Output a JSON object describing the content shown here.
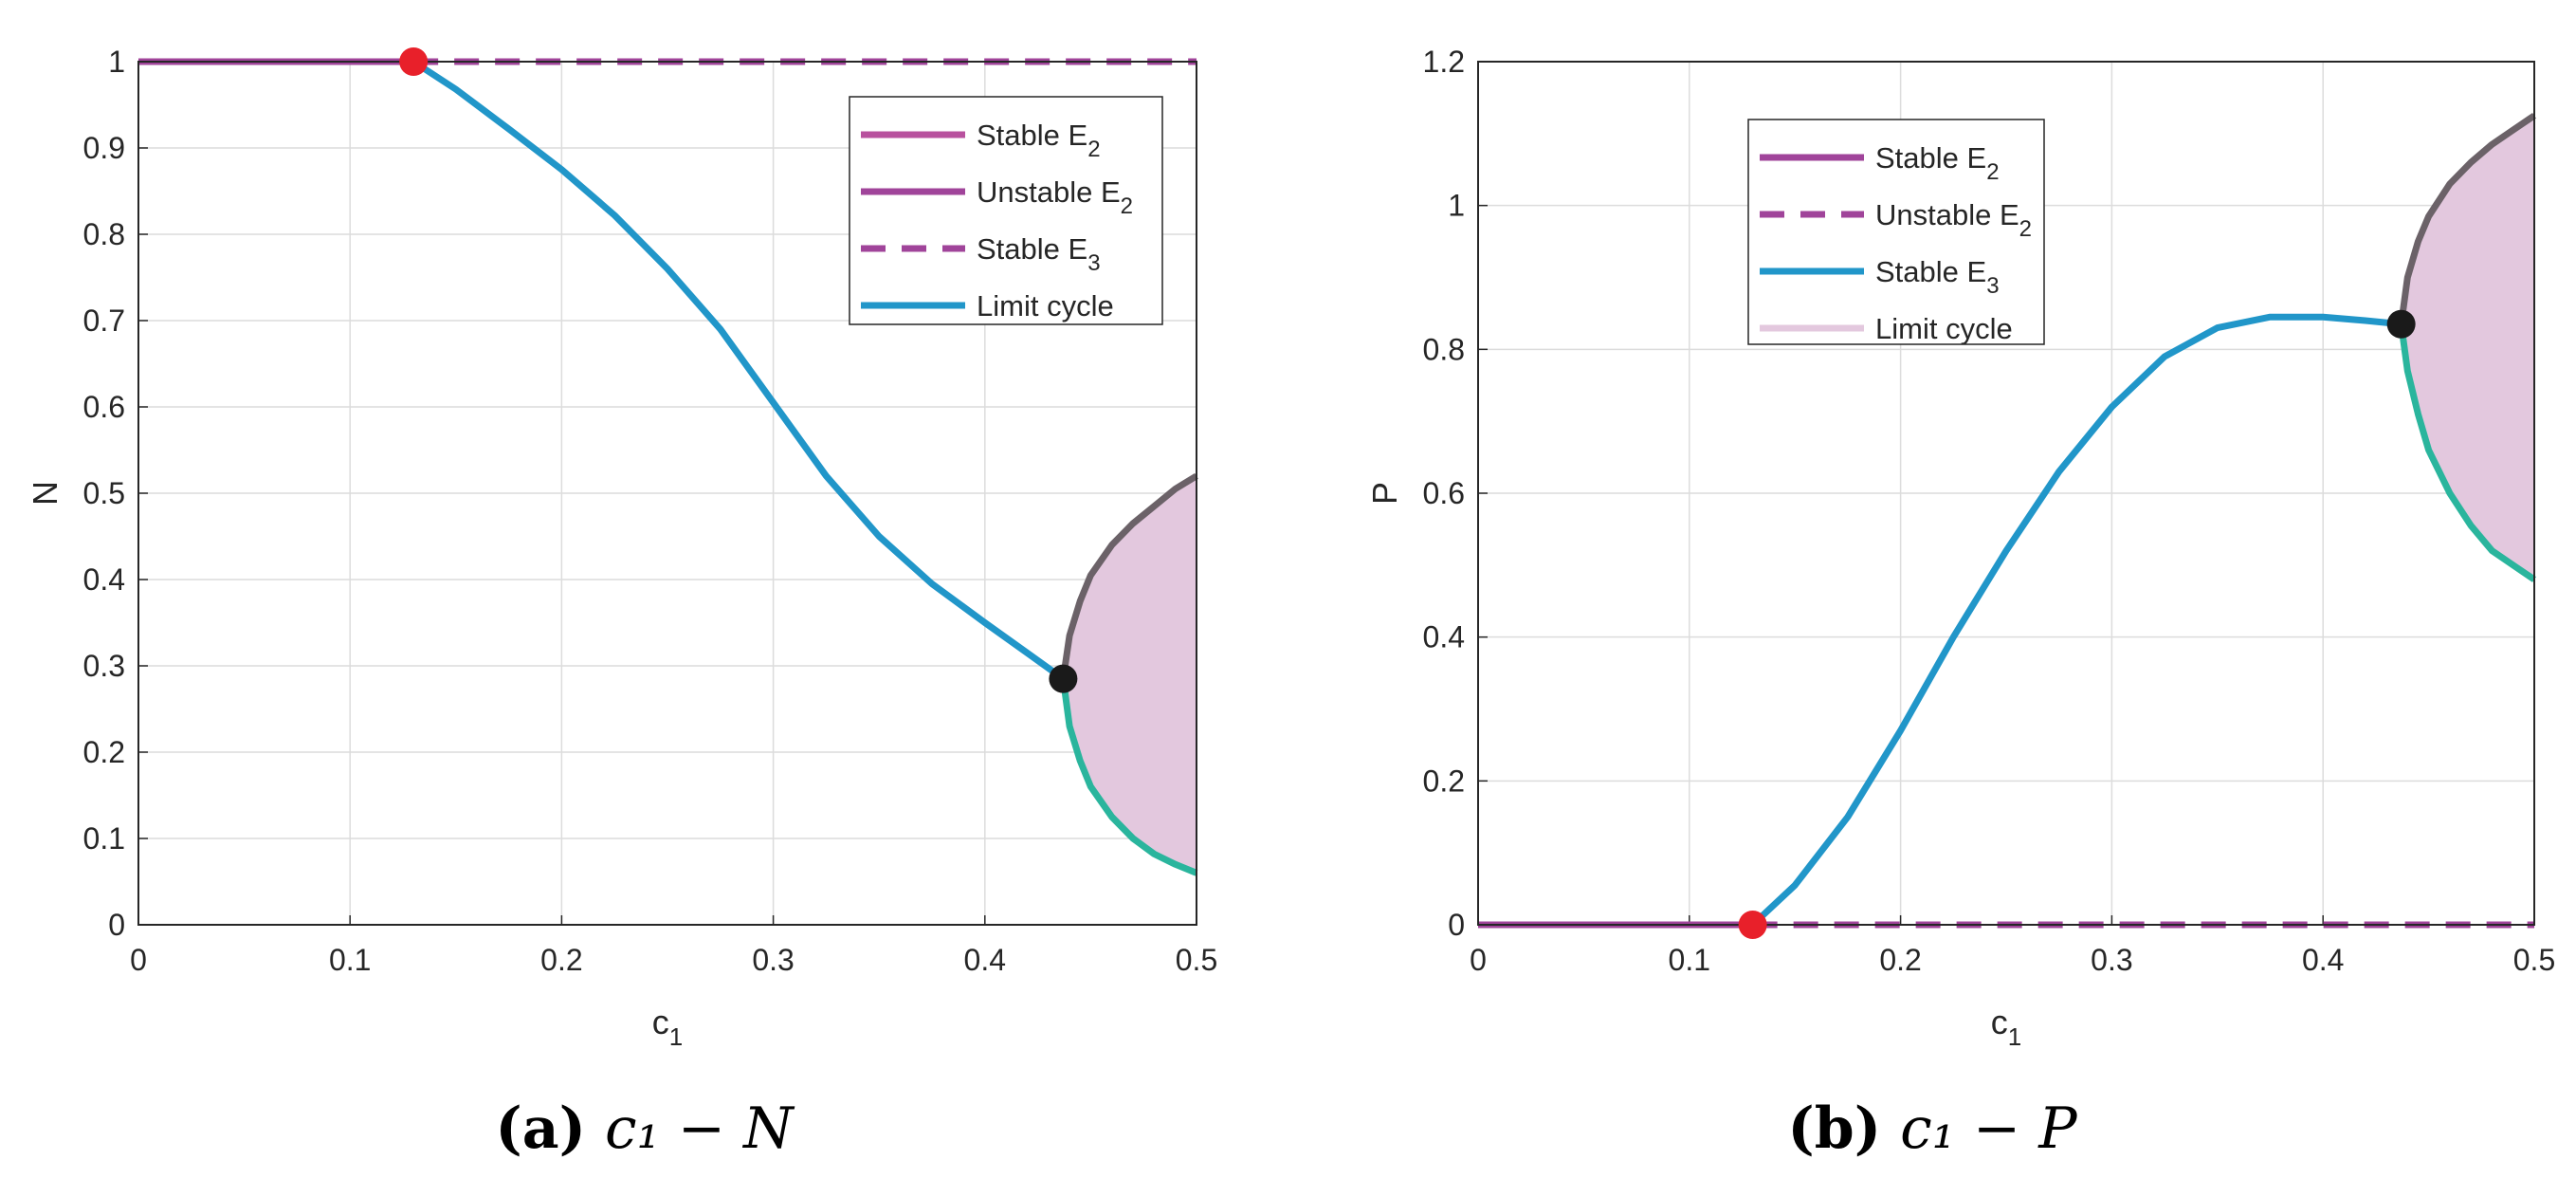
{
  "chart_data": [
    {
      "type": "line",
      "panel": "a",
      "caption_label": "(a)",
      "caption_math": "c₁ − N",
      "xlabel": "c",
      "xlabel_sub": "1",
      "ylabel": "N",
      "xlim": [
        0,
        0.5
      ],
      "ylim": [
        0,
        1
      ],
      "xticks": [
        "0",
        "0.1",
        "0.2",
        "0.3",
        "0.4",
        "0.5"
      ],
      "yticks": [
        "0",
        "0.1",
        "0.2",
        "0.3",
        "0.4",
        "0.5",
        "0.6",
        "0.7",
        "0.8",
        "0.9",
        "1"
      ],
      "grid": true,
      "legend_position": "top-right",
      "legend": [
        {
          "main": "Stable E",
          "sub": "2",
          "style": "solid",
          "color": "#b8519e"
        },
        {
          "main": "Unstable E",
          "sub": "2",
          "style": "solid",
          "color": "#a0449a"
        },
        {
          "main": "Stable E",
          "sub": "3",
          "style": "dashed",
          "color": "#a0449a"
        },
        {
          "main": "Limit cycle",
          "sub": "",
          "style": "solid",
          "color": "#2196c9"
        }
      ],
      "series": [
        {
          "name": "Stable E2",
          "style": "solid",
          "color": "#a0449a",
          "x": [
            0,
            0.13
          ],
          "y": [
            1,
            1
          ]
        },
        {
          "name": "Unstable E2",
          "style": "dashed",
          "color": "#a0449a",
          "x": [
            0.13,
            0.5
          ],
          "y": [
            1,
            1
          ]
        },
        {
          "name": "Stable E3",
          "style": "solid",
          "color": "#2196c9",
          "x": [
            0.13,
            0.15,
            0.175,
            0.2,
            0.225,
            0.25,
            0.275,
            0.3,
            0.325,
            0.35,
            0.375,
            0.4,
            0.42,
            0.437
          ],
          "y": [
            1.0,
            0.968,
            0.922,
            0.875,
            0.822,
            0.76,
            0.69,
            0.605,
            0.52,
            0.45,
            0.395,
            0.35,
            0.315,
            0.285
          ]
        },
        {
          "name": "Limit cycle max",
          "style": "solid",
          "color": "#6b6268",
          "x": [
            0.437,
            0.44,
            0.445,
            0.45,
            0.46,
            0.47,
            0.48,
            0.49,
            0.5
          ],
          "y": [
            0.285,
            0.335,
            0.375,
            0.405,
            0.44,
            0.465,
            0.485,
            0.505,
            0.52
          ]
        },
        {
          "name": "Limit cycle min",
          "style": "solid",
          "color": "#2ab59d",
          "x": [
            0.437,
            0.44,
            0.445,
            0.45,
            0.46,
            0.47,
            0.48,
            0.49,
            0.5
          ],
          "y": [
            0.285,
            0.23,
            0.19,
            0.16,
            0.125,
            0.1,
            0.082,
            0.07,
            0.06
          ]
        }
      ],
      "band": {
        "color": "#e3c8de",
        "upper": "Limit cycle max",
        "lower": "Limit cycle min"
      },
      "markers": [
        {
          "name": "branch-point",
          "x": 0.13,
          "y": 1.0,
          "color": "#e8202a"
        },
        {
          "name": "hopf-point",
          "x": 0.437,
          "y": 0.285,
          "color": "#1a1a1a"
        }
      ]
    },
    {
      "type": "line",
      "panel": "b",
      "caption_label": "(b)",
      "caption_math": "c₁ − P",
      "xlabel": "c",
      "xlabel_sub": "1",
      "ylabel": "P",
      "xlim": [
        0,
        0.5
      ],
      "ylim": [
        0,
        1.2
      ],
      "xticks": [
        "0",
        "0.1",
        "0.2",
        "0.3",
        "0.4",
        "0.5"
      ],
      "yticks": [
        "0",
        "0.2",
        "0.4",
        "0.6",
        "0.8",
        "1",
        "1.2"
      ],
      "grid": true,
      "legend_position": "top-left",
      "legend": [
        {
          "main": "Stable E",
          "sub": "2",
          "style": "solid",
          "color": "#a0449a"
        },
        {
          "main": "Unstable E",
          "sub": "2",
          "style": "dashed",
          "color": "#a0449a"
        },
        {
          "main": "Stable E",
          "sub": "3",
          "style": "solid",
          "color": "#2196c9"
        },
        {
          "main": "Limit cycle",
          "sub": "",
          "style": "solid",
          "color": "#e3c8de"
        }
      ],
      "series": [
        {
          "name": "Stable E2",
          "style": "solid",
          "color": "#a0449a",
          "x": [
            0,
            0.13
          ],
          "y": [
            0,
            0
          ]
        },
        {
          "name": "Unstable E2",
          "style": "dashed",
          "color": "#a0449a",
          "x": [
            0.13,
            0.5
          ],
          "y": [
            0,
            0
          ]
        },
        {
          "name": "Stable E3",
          "style": "solid",
          "color": "#2196c9",
          "x": [
            0.13,
            0.15,
            0.175,
            0.2,
            0.225,
            0.25,
            0.275,
            0.3,
            0.325,
            0.35,
            0.375,
            0.4,
            0.42,
            0.437
          ],
          "y": [
            0.0,
            0.055,
            0.15,
            0.27,
            0.4,
            0.52,
            0.63,
            0.72,
            0.79,
            0.83,
            0.845,
            0.845,
            0.84,
            0.835
          ]
        },
        {
          "name": "Limit cycle max",
          "style": "solid",
          "color": "#6b6268",
          "x": [
            0.437,
            0.44,
            0.445,
            0.45,
            0.46,
            0.47,
            0.48,
            0.49,
            0.5
          ],
          "y": [
            0.835,
            0.9,
            0.95,
            0.985,
            1.03,
            1.06,
            1.085,
            1.105,
            1.125
          ]
        },
        {
          "name": "Limit cycle min",
          "style": "solid",
          "color": "#2ab59d",
          "x": [
            0.437,
            0.44,
            0.445,
            0.45,
            0.46,
            0.47,
            0.48,
            0.49,
            0.5
          ],
          "y": [
            0.835,
            0.77,
            0.71,
            0.66,
            0.6,
            0.555,
            0.52,
            0.5,
            0.48
          ]
        }
      ],
      "band": {
        "color": "#e3c8de",
        "upper": "Limit cycle max",
        "lower": "Limit cycle min"
      },
      "markers": [
        {
          "name": "branch-point",
          "x": 0.13,
          "y": 0.0,
          "color": "#e8202a"
        },
        {
          "name": "hopf-point",
          "x": 0.437,
          "y": 0.835,
          "color": "#1a1a1a"
        }
      ]
    }
  ]
}
